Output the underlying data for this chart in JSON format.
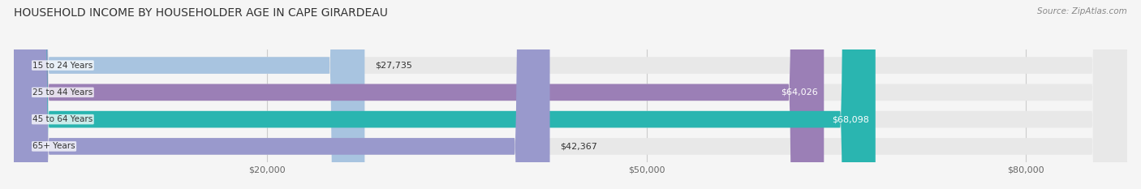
{
  "title": "HOUSEHOLD INCOME BY HOUSEHOLDER AGE IN CAPE GIRARDEAU",
  "source": "Source: ZipAtlas.com",
  "categories": [
    "15 to 24 Years",
    "25 to 44 Years",
    "45 to 64 Years",
    "65+ Years"
  ],
  "values": [
    27735,
    64026,
    68098,
    42367
  ],
  "bar_colors": [
    "#a8c4e0",
    "#9b7fb6",
    "#2ab5b0",
    "#9999cc"
  ],
  "bar_labels": [
    "$27,735",
    "$64,026",
    "$68,098",
    "$42,367"
  ],
  "label_white": [
    false,
    true,
    true,
    false
  ],
  "x_ticks": [
    20000,
    50000,
    80000
  ],
  "x_tick_labels": [
    "$20,000",
    "$50,000",
    "$80,000"
  ],
  "xlim": [
    0,
    88000
  ],
  "background_color": "#f5f5f5",
  "bar_bg_color": "#e8e8e8",
  "title_fontsize": 10,
  "source_fontsize": 7.5
}
